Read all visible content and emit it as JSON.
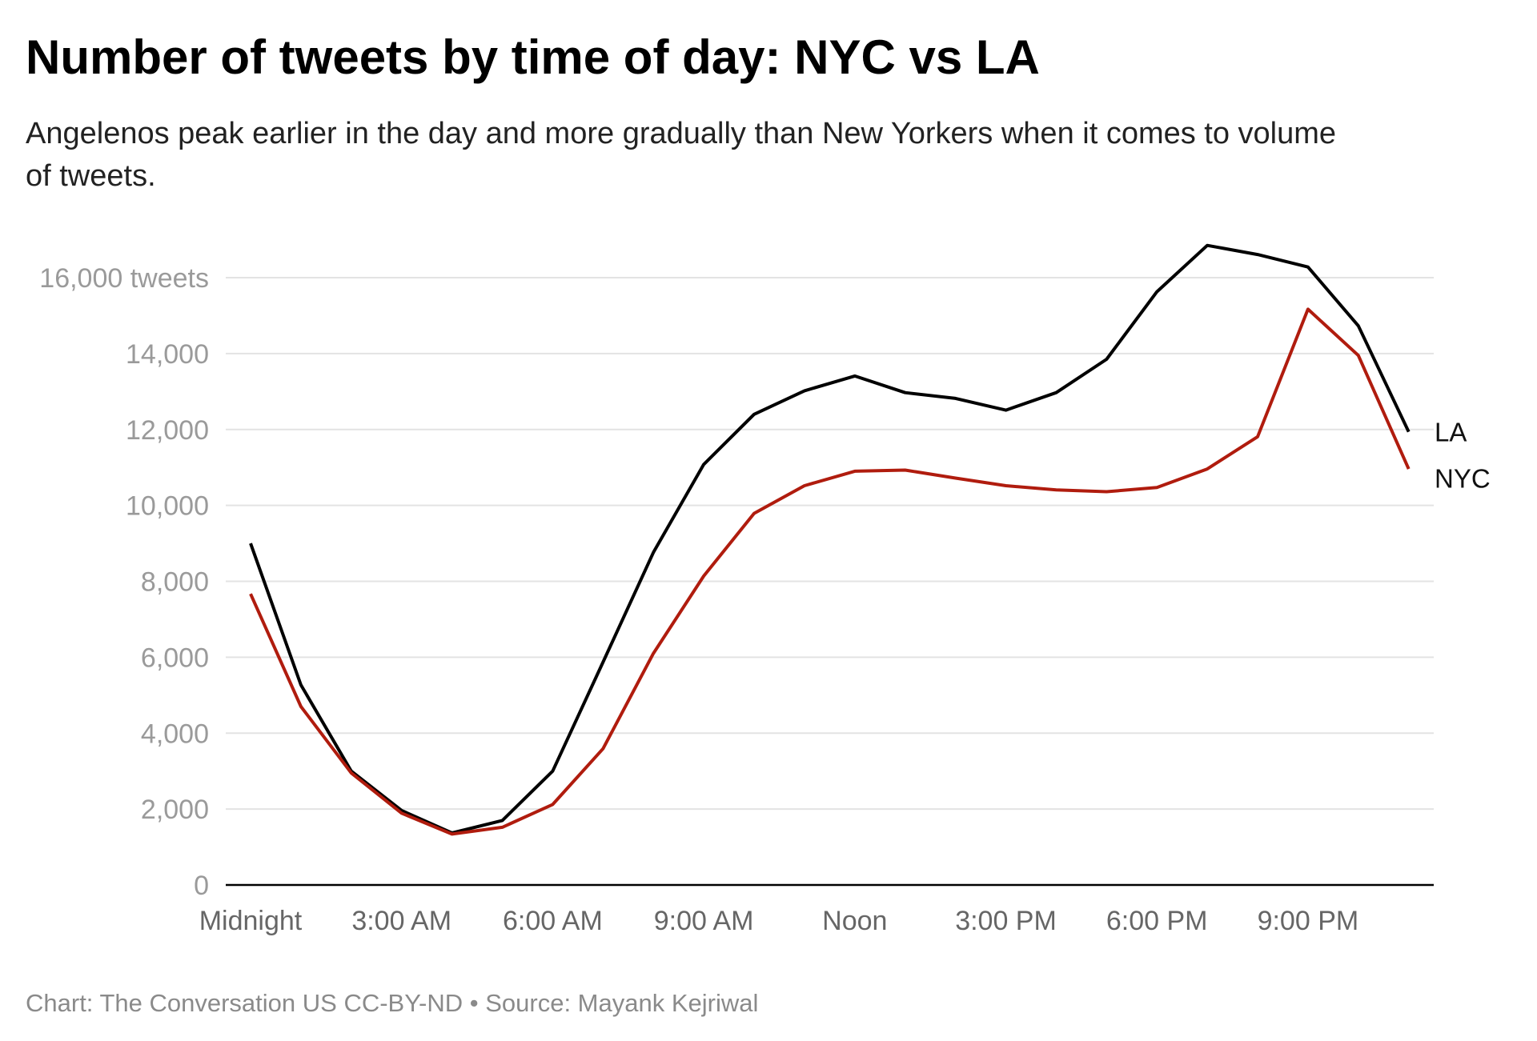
{
  "chart_data": {
    "type": "line",
    "title": "Number of tweets by time of day: NYC vs LA",
    "subtitle_lines": [
      "Angelenos peak earlier in the day and more gradually than New Yorkers when it comes to volume",
      "of tweets."
    ],
    "xlabel": "",
    "ylabel": "",
    "x": [
      0,
      1,
      2,
      3,
      4,
      5,
      6,
      7,
      8,
      9,
      10,
      11,
      12,
      13,
      14,
      15,
      16,
      17,
      18,
      19,
      20,
      21,
      22,
      23
    ],
    "x_unit": "hour of day",
    "x_ticks": [
      {
        "value": 0,
        "label": "Midnight"
      },
      {
        "value": 3,
        "label": "3:00 AM"
      },
      {
        "value": 6,
        "label": "6:00 AM"
      },
      {
        "value": 9,
        "label": "9:00 AM"
      },
      {
        "value": 12,
        "label": "Noon"
      },
      {
        "value": 15,
        "label": "3:00 PM"
      },
      {
        "value": 18,
        "label": "6:00 PM"
      },
      {
        "value": 21,
        "label": "9:00 PM"
      }
    ],
    "y_ticks": [
      {
        "value": 0,
        "label": "0"
      },
      {
        "value": 2000,
        "label": "2,000"
      },
      {
        "value": 4000,
        "label": "4,000"
      },
      {
        "value": 6000,
        "label": "6,000"
      },
      {
        "value": 8000,
        "label": "8,000"
      },
      {
        "value": 10000,
        "label": "10,000"
      },
      {
        "value": 12000,
        "label": "12,000"
      },
      {
        "value": 14000,
        "label": "14,000"
      },
      {
        "value": 16000,
        "label": "16,000 tweets"
      }
    ],
    "ylim": [
      0,
      16000
    ],
    "xlim": [
      0,
      23
    ],
    "grid": true,
    "legend": "direct labels at line ends (right)",
    "series": [
      {
        "name": "LA",
        "color": "#000000",
        "values": [
          9000,
          5270,
          3000,
          1960,
          1370,
          1700,
          3000,
          5870,
          8760,
          11080,
          12400,
          13020,
          13410,
          12970,
          12820,
          12510,
          12970,
          13850,
          15630,
          16850,
          16610,
          16280,
          14730,
          11940
        ]
      },
      {
        "name": "NYC",
        "color": "#b01c0e",
        "values": [
          7670,
          4700,
          2950,
          1890,
          1340,
          1520,
          2120,
          3590,
          6100,
          8140,
          9790,
          10520,
          10900,
          10930,
          10720,
          10520,
          10410,
          10360,
          10470,
          10960,
          11810,
          15170,
          13950,
          10960
        ]
      }
    ],
    "footer": "Chart: The Conversation US CC-BY-ND • Source: Mayank Kejriwal"
  }
}
